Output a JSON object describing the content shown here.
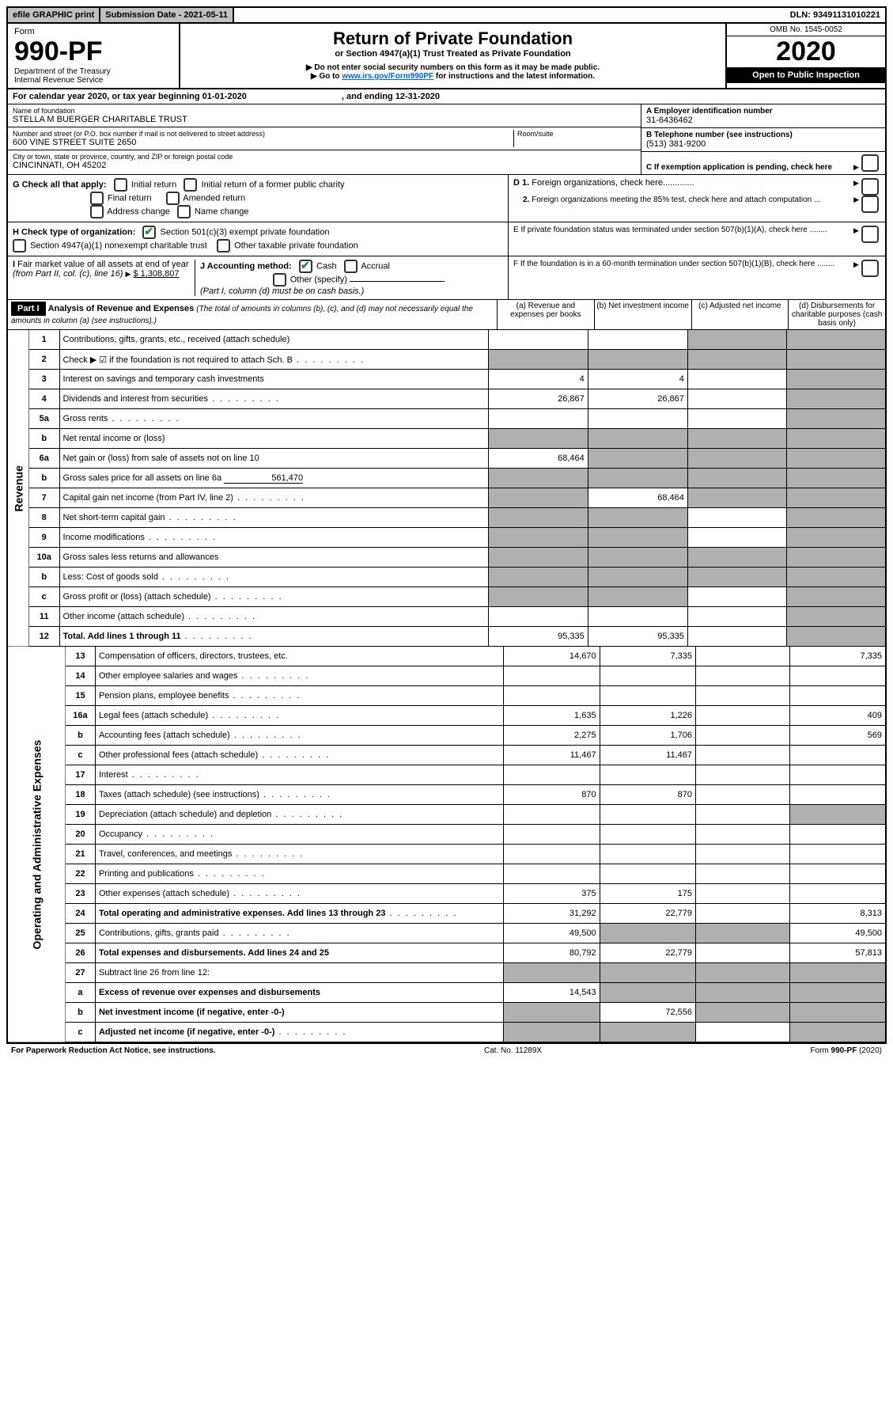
{
  "topbar": {
    "efile": "efile GRAPHIC print",
    "subdate_label": "Submission Date - 2021-05-11",
    "dln": "DLN: 93491131010221"
  },
  "header": {
    "form_label": "Form",
    "form_no": "990-PF",
    "dept": "Department of the Treasury",
    "irs": "Internal Revenue Service",
    "title": "Return of Private Foundation",
    "subtitle": "or Section 4947(a)(1) Trust Treated as Private Foundation",
    "note1": "▶ Do not enter social security numbers on this form as it may be made public.",
    "note2_pre": "▶ Go to ",
    "note2_link": "www.irs.gov/Form990PF",
    "note2_post": " for instructions and the latest information.",
    "omb": "OMB No. 1545-0052",
    "year": "2020",
    "inspect": "Open to Public Inspection"
  },
  "calyear": {
    "pre": "For calendar year 2020, or tax year beginning 01-01-2020",
    "end": ", and ending 12-31-2020"
  },
  "foundation": {
    "name_label": "Name of foundation",
    "name": "STELLA M BUERGER CHARITABLE TRUST",
    "addr_label": "Number and street (or P.O. box number if mail is not delivered to street address)",
    "addr": "600 VINE STREET SUITE 2650",
    "room_label": "Room/suite",
    "city_label": "City or town, state or province, country, and ZIP or foreign postal code",
    "city": "CINCINNATI, OH  45202",
    "ein_label": "A Employer identification number",
    "ein": "31-6436462",
    "phone_label": "B Telephone number (see instructions)",
    "phone": "(513) 381-9200",
    "c_label": "C If exemption application is pending, check here"
  },
  "checks": {
    "g_label": "G Check all that apply:",
    "g_opts": [
      "Initial return",
      "Initial return of a former public charity",
      "Final return",
      "Amended return",
      "Address change",
      "Name change"
    ],
    "h_label": "H Check type of organization:",
    "h1": "Section 501(c)(3) exempt private foundation",
    "h2": "Section 4947(a)(1) nonexempt charitable trust",
    "h3": "Other taxable private foundation",
    "i_label": "I Fair market value of all assets at end of year (from Part II, col. (c), line 16)",
    "i_val": "$  1,308,807",
    "j_label": "J Accounting method:",
    "j_cash": "Cash",
    "j_accrual": "Accrual",
    "j_other": "Other (specify)",
    "j_note": "(Part I, column (d) must be on cash basis.)",
    "d1": "D 1. Foreign organizations, check here.............",
    "d2": "2. Foreign organizations meeting the 85% test, check here and attach computation ...",
    "e": "E  If private foundation status was terminated under section 507(b)(1)(A), check here ........",
    "f": "F  If the foundation is in a 60-month termination under section 507(b)(1)(B), check here ........"
  },
  "part1": {
    "label": "Part I",
    "title": "Analysis of Revenue and Expenses",
    "title_note": "(The total of amounts in columns (b), (c), and (d) may not necessarily equal the amounts in column (a) (see instructions).)",
    "cols": [
      "(a)   Revenue and expenses per books",
      "(b)  Net investment income",
      "(c)  Adjusted net income",
      "(d)  Disbursements for charitable purposes (cash basis only)"
    ],
    "side_rev": "Revenue",
    "side_exp": "Operating and Administrative Expenses"
  },
  "rows": [
    {
      "n": "1",
      "d": "Contributions, gifts, grants, etc., received (attach schedule)",
      "a": "",
      "b": "",
      "c": "s",
      "dd": "s"
    },
    {
      "n": "2",
      "d": "Check ▶ ☑ if the foundation is not required to attach Sch. B",
      "a": "s",
      "b": "s",
      "c": "s",
      "dd": "s",
      "bold_not": true,
      "dots": true
    },
    {
      "n": "3",
      "d": "Interest on savings and temporary cash investments",
      "a": "4",
      "b": "4",
      "c": "",
      "dd": "s"
    },
    {
      "n": "4",
      "d": "Dividends and interest from securities",
      "a": "26,867",
      "b": "26,867",
      "c": "",
      "dd": "s",
      "dots": true
    },
    {
      "n": "5a",
      "d": "Gross rents",
      "a": "",
      "b": "",
      "c": "",
      "dd": "s",
      "dots": true
    },
    {
      "n": "b",
      "d": "Net rental income or (loss)",
      "a": "s",
      "b": "s",
      "c": "s",
      "dd": "s",
      "underline": true
    },
    {
      "n": "6a",
      "d": "Net gain or (loss) from sale of assets not on line 10",
      "a": "68,464",
      "b": "s",
      "c": "s",
      "dd": "s"
    },
    {
      "n": "b",
      "d": "Gross sales price for all assets on line 6a",
      "a": "s",
      "b": "s",
      "c": "s",
      "dd": "s",
      "inline_val": "561,470"
    },
    {
      "n": "7",
      "d": "Capital gain net income (from Part IV, line 2)",
      "a": "s",
      "b": "68,464",
      "c": "s",
      "dd": "s",
      "dots": true
    },
    {
      "n": "8",
      "d": "Net short-term capital gain",
      "a": "s",
      "b": "s",
      "c": "",
      "dd": "s",
      "dots": true
    },
    {
      "n": "9",
      "d": "Income modifications",
      "a": "s",
      "b": "s",
      "c": "",
      "dd": "s",
      "dots": true
    },
    {
      "n": "10a",
      "d": "Gross sales less returns and allowances",
      "a": "s",
      "b": "s",
      "c": "s",
      "dd": "s",
      "underline": true
    },
    {
      "n": "b",
      "d": "Less: Cost of goods sold",
      "a": "s",
      "b": "s",
      "c": "s",
      "dd": "s",
      "underline": true,
      "dots": true
    },
    {
      "n": "c",
      "d": "Gross profit or (loss) (attach schedule)",
      "a": "s",
      "b": "s",
      "c": "",
      "dd": "s",
      "dots": true
    },
    {
      "n": "11",
      "d": "Other income (attach schedule)",
      "a": "",
      "b": "",
      "c": "",
      "dd": "s",
      "dots": true
    },
    {
      "n": "12",
      "d": "Total. Add lines 1 through 11",
      "a": "95,335",
      "b": "95,335",
      "c": "",
      "dd": "s",
      "bold": true,
      "dots": true
    }
  ],
  "exp_rows": [
    {
      "n": "13",
      "d": "Compensation of officers, directors, trustees, etc.",
      "a": "14,670",
      "b": "7,335",
      "c": "",
      "dd": "7,335"
    },
    {
      "n": "14",
      "d": "Other employee salaries and wages",
      "a": "",
      "b": "",
      "c": "",
      "dd": "",
      "dots": true
    },
    {
      "n": "15",
      "d": "Pension plans, employee benefits",
      "a": "",
      "b": "",
      "c": "",
      "dd": "",
      "dots": true
    },
    {
      "n": "16a",
      "d": "Legal fees (attach schedule)",
      "a": "1,635",
      "b": "1,226",
      "c": "",
      "dd": "409",
      "dots": true
    },
    {
      "n": "b",
      "d": "Accounting fees (attach schedule)",
      "a": "2,275",
      "b": "1,706",
      "c": "",
      "dd": "569",
      "dots": true
    },
    {
      "n": "c",
      "d": "Other professional fees (attach schedule)",
      "a": "11,467",
      "b": "11,467",
      "c": "",
      "dd": "",
      "dots": true
    },
    {
      "n": "17",
      "d": "Interest",
      "a": "",
      "b": "",
      "c": "",
      "dd": "",
      "dots": true
    },
    {
      "n": "18",
      "d": "Taxes (attach schedule) (see instructions)",
      "a": "870",
      "b": "870",
      "c": "",
      "dd": "",
      "dots": true
    },
    {
      "n": "19",
      "d": "Depreciation (attach schedule) and depletion",
      "a": "",
      "b": "",
      "c": "",
      "dd": "s",
      "dots": true
    },
    {
      "n": "20",
      "d": "Occupancy",
      "a": "",
      "b": "",
      "c": "",
      "dd": "",
      "dots": true
    },
    {
      "n": "21",
      "d": "Travel, conferences, and meetings",
      "a": "",
      "b": "",
      "c": "",
      "dd": "",
      "dots": true
    },
    {
      "n": "22",
      "d": "Printing and publications",
      "a": "",
      "b": "",
      "c": "",
      "dd": "",
      "dots": true
    },
    {
      "n": "23",
      "d": "Other expenses (attach schedule)",
      "a": "375",
      "b": "175",
      "c": "",
      "dd": "",
      "dots": true
    },
    {
      "n": "24",
      "d": "Total operating and administrative expenses. Add lines 13 through 23",
      "a": "31,292",
      "b": "22,779",
      "c": "",
      "dd": "8,313",
      "bold": true,
      "dots": true
    },
    {
      "n": "25",
      "d": "Contributions, gifts, grants paid",
      "a": "49,500",
      "b": "s",
      "c": "s",
      "dd": "49,500",
      "dots": true
    },
    {
      "n": "26",
      "d": "Total expenses and disbursements. Add lines 24 and 25",
      "a": "80,792",
      "b": "22,779",
      "c": "",
      "dd": "57,813",
      "bold": true
    },
    {
      "n": "27",
      "d": "Subtract line 26 from line 12:",
      "a": "s",
      "b": "s",
      "c": "s",
      "dd": "s"
    },
    {
      "n": "a",
      "d": "Excess of revenue over expenses and disbursements",
      "a": "14,543",
      "b": "s",
      "c": "s",
      "dd": "s",
      "bold": true
    },
    {
      "n": "b",
      "d": "Net investment income (if negative, enter -0-)",
      "a": "s",
      "b": "72,556",
      "c": "s",
      "dd": "s",
      "bold": true
    },
    {
      "n": "c",
      "d": "Adjusted net income (if negative, enter -0-)",
      "a": "s",
      "b": "s",
      "c": "",
      "dd": "s",
      "bold": true,
      "dots": true
    }
  ],
  "footer": {
    "left": "For Paperwork Reduction Act Notice, see instructions.",
    "mid": "Cat. No. 11289X",
    "right": "Form 990-PF (2020)"
  }
}
